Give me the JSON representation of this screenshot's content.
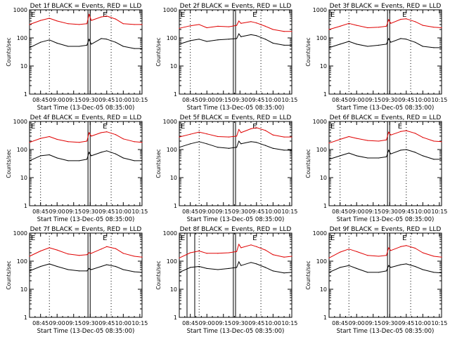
{
  "figure": {
    "x_axis_title": "Start Time (13-Dec-05 08:35:00)",
    "y_axis_title": "Counts/sec",
    "x_tick_labels": [
      "08:45",
      "09:00",
      "09:15",
      "09:30",
      "09:45",
      "10:00",
      "10:15"
    ],
    "y_tick_labels": [
      "1",
      "10",
      "100",
      "1000"
    ],
    "marker_labels": [
      "E",
      "E"
    ],
    "colors": {
      "events": "#000000",
      "lld": "#e00000",
      "axes": "#000000",
      "background": "#ffffff"
    }
  },
  "chart_data": [
    {
      "type": "line",
      "title": "Det 1f BLACK = Events, RED = LLD",
      "xlabel": "Start Time (13-Dec-05 08:35:00)",
      "ylabel": "Counts/sec",
      "x_unit": "time (hh:mm)",
      "xlim": [
        "08:35",
        "10:17"
      ],
      "ylim": [
        1,
        1000
      ],
      "yscale": "log",
      "vertical_markers": {
        "dotted": [
          "08:53",
          "09:49"
        ],
        "solid": [
          "09:28",
          "09:30"
        ]
      },
      "x": [
        "08:35",
        "08:45",
        "08:53",
        "09:00",
        "09:10",
        "09:20",
        "09:27",
        "09:29",
        "09:31",
        "09:40",
        "09:45",
        "09:53",
        "10:00",
        "10:10",
        "10:17"
      ],
      "series": [
        {
          "name": "BLACK = Events",
          "color": "#000000",
          "values": [
            45,
            70,
            85,
            65,
            50,
            50,
            55,
            90,
            60,
            95,
            90,
            70,
            50,
            42,
            42
          ]
        },
        {
          "name": "RED = LLD",
          "color": "#e00000",
          "values": [
            300,
            420,
            500,
            400,
            320,
            300,
            320,
            700,
            420,
            560,
            600,
            470,
            320,
            300,
            300
          ]
        }
      ]
    },
    {
      "type": "line",
      "title": "Det 2f BLACK = Events, RED = LLD",
      "xlabel": "Start Time (13-Dec-05 08:35:00)",
      "ylabel": "Counts/sec",
      "x_unit": "time (hh:mm)",
      "xlim": [
        "08:35",
        "10:17"
      ],
      "ylim": [
        1,
        1000
      ],
      "yscale": "log",
      "vertical_markers": {
        "dotted": [
          "08:45",
          "09:49"
        ],
        "solid": [
          "09:24",
          "09:26"
        ]
      },
      "x": [
        "08:35",
        "08:45",
        "08:53",
        "09:00",
        "09:10",
        "09:20",
        "09:27",
        "09:29",
        "09:31",
        "09:40",
        "09:45",
        "09:53",
        "10:00",
        "10:10",
        "10:17"
      ],
      "series": [
        {
          "name": "BLACK = Events",
          "color": "#000000",
          "values": [
            60,
            80,
            90,
            75,
            85,
            90,
            95,
            140,
            110,
            130,
            120,
            90,
            65,
            55,
            55
          ]
        },
        {
          "name": "RED = LLD",
          "color": "#e00000",
          "values": [
            220,
            270,
            300,
            230,
            260,
            250,
            280,
            400,
            330,
            380,
            340,
            260,
            200,
            170,
            170
          ]
        }
      ]
    },
    {
      "type": "line",
      "title": "Det 3f BLACK = Events, RED = LLD",
      "xlabel": "Start Time (13-Dec-05 08:35:00)",
      "ylabel": "Counts/sec",
      "x_unit": "time (hh:mm)",
      "xlim": [
        "08:35",
        "10:17"
      ],
      "ylim": [
        1,
        1000
      ],
      "yscale": "log",
      "vertical_markers": {
        "dotted": [
          "08:53",
          "09:49"
        ],
        "solid": [
          "09:28",
          "09:30"
        ]
      },
      "x": [
        "08:35",
        "08:45",
        "08:53",
        "09:00",
        "09:10",
        "09:20",
        "09:27",
        "09:29",
        "09:31",
        "09:40",
        "09:45",
        "09:53",
        "10:00",
        "10:10",
        "10:17"
      ],
      "series": [
        {
          "name": "BLACK = Events",
          "color": "#000000",
          "values": [
            45,
            60,
            75,
            60,
            50,
            55,
            60,
            95,
            70,
            95,
            90,
            70,
            50,
            45,
            45
          ]
        },
        {
          "name": "RED = LLD",
          "color": "#e00000",
          "values": [
            200,
            260,
            330,
            280,
            230,
            240,
            260,
            450,
            330,
            460,
            480,
            380,
            280,
            240,
            230
          ]
        }
      ]
    },
    {
      "type": "line",
      "title": "Det 4f BLACK = Events, RED = LLD",
      "xlabel": "Start Time (13-Dec-05 08:35:00)",
      "ylabel": "Counts/sec",
      "x_unit": "time (hh:mm)",
      "xlim": [
        "08:35",
        "10:17"
      ],
      "ylim": [
        1,
        1000
      ],
      "yscale": "log",
      "vertical_markers": {
        "dotted": [
          "08:45",
          "09:49"
        ],
        "solid": [
          "09:28",
          "09:30"
        ]
      },
      "x": [
        "08:35",
        "08:45",
        "08:53",
        "09:00",
        "09:10",
        "09:20",
        "09:27",
        "09:29",
        "09:31",
        "09:40",
        "09:45",
        "09:53",
        "10:00",
        "10:10",
        "10:17"
      ],
      "series": [
        {
          "name": "BLACK = Events",
          "color": "#000000",
          "values": [
            40,
            60,
            65,
            50,
            40,
            40,
            45,
            80,
            60,
            80,
            90,
            70,
            50,
            40,
            40
          ]
        },
        {
          "name": "RED = LLD",
          "color": "#e00000",
          "values": [
            180,
            250,
            290,
            230,
            190,
            180,
            200,
            400,
            300,
            400,
            430,
            340,
            240,
            190,
            180
          ]
        }
      ]
    },
    {
      "type": "line",
      "title": "Det 5f BLACK = Events, RED = LLD",
      "xlabel": "Start Time (13-Dec-05 08:35:00)",
      "ylabel": "Counts/sec",
      "x_unit": "time (hh:mm)",
      "xlim": [
        "08:35",
        "10:17"
      ],
      "ylim": [
        1,
        1000
      ],
      "yscale": "log",
      "vertical_markers": {
        "dotted": [
          "08:53",
          "09:49"
        ],
        "solid": [
          "09:24",
          "09:26"
        ]
      },
      "x": [
        "08:35",
        "08:45",
        "08:53",
        "09:00",
        "09:10",
        "09:20",
        "09:27",
        "09:29",
        "09:31",
        "09:40",
        "09:45",
        "09:53",
        "10:00",
        "10:10",
        "10:17"
      ],
      "series": [
        {
          "name": "BLACK = Events",
          "color": "#000000",
          "values": [
            120,
            160,
            190,
            160,
            120,
            110,
            120,
            200,
            160,
            190,
            180,
            140,
            110,
            95,
            95
          ]
        },
        {
          "name": "RED = LLD",
          "color": "#e00000",
          "values": [
            280,
            350,
            420,
            360,
            290,
            280,
            300,
            520,
            400,
            550,
            600,
            480,
            330,
            280,
            280
          ]
        }
      ]
    },
    {
      "type": "line",
      "title": "Det 6f BLACK = Events, RED = LLD",
      "xlabel": "Start Time (13-Dec-05 08:35:00)",
      "ylabel": "Counts/sec",
      "x_unit": "time (hh:mm)",
      "xlim": [
        "08:35",
        "10:17"
      ],
      "ylim": [
        1,
        1000
      ],
      "yscale": "log",
      "vertical_markers": {
        "dotted": [
          "08:45",
          "09:45"
        ],
        "solid": [
          "09:28",
          "09:30"
        ]
      },
      "x": [
        "08:35",
        "08:45",
        "08:53",
        "09:00",
        "09:10",
        "09:20",
        "09:27",
        "09:29",
        "09:31",
        "09:40",
        "09:45",
        "09:53",
        "10:00",
        "10:10",
        "10:17"
      ],
      "series": [
        {
          "name": "BLACK = Events",
          "color": "#000000",
          "values": [
            45,
            60,
            75,
            60,
            50,
            50,
            55,
            95,
            70,
            95,
            100,
            80,
            60,
            45,
            45
          ]
        },
        {
          "name": "RED = LLD",
          "color": "#e00000",
          "values": [
            170,
            230,
            290,
            250,
            210,
            200,
            220,
            420,
            330,
            440,
            470,
            380,
            270,
            200,
            190
          ]
        }
      ]
    },
    {
      "type": "line",
      "title": "Det 7f BLACK = Events, RED = LLD",
      "xlabel": "Start Time (13-Dec-05 08:35:00)",
      "ylabel": "Counts/sec",
      "x_unit": "time (hh:mm)",
      "xlim": [
        "08:35",
        "10:17"
      ],
      "ylim": [
        1,
        1000
      ],
      "yscale": "log",
      "vertical_markers": {
        "dotted": [
          "08:53",
          "09:49"
        ],
        "solid": [
          "09:28",
          "09:30"
        ]
      },
      "x": [
        "08:35",
        "08:45",
        "08:53",
        "09:00",
        "09:10",
        "09:20",
        "09:27",
        "09:29",
        "09:31",
        "09:40",
        "09:45",
        "09:53",
        "10:00",
        "10:10",
        "10:17"
      ],
      "series": [
        {
          "name": "BLACK = Events",
          "color": "#000000",
          "values": [
            45,
            65,
            80,
            65,
            50,
            45,
            45,
            55,
            50,
            65,
            75,
            65,
            50,
            42,
            40
          ]
        },
        {
          "name": "RED = LLD",
          "color": "#e00000",
          "values": [
            150,
            230,
            300,
            250,
            180,
            160,
            170,
            200,
            190,
            270,
            330,
            280,
            190,
            150,
            140
          ]
        }
      ]
    },
    {
      "type": "line",
      "title": "Det 8f BLACK = Events, RED = LLD",
      "xlabel": "Start Time (13-Dec-05 08:35:00)",
      "ylabel": "Counts/sec",
      "x_unit": "time (hh:mm)",
      "xlim": [
        "08:35",
        "10:17"
      ],
      "ylim": [
        1,
        1000
      ],
      "yscale": "log",
      "vertical_markers": {
        "dotted": [
          "08:53",
          "09:49"
        ],
        "solid": [
          "08:42",
          "08:49",
          "09:24",
          "09:26"
        ]
      },
      "x": [
        "08:35",
        "08:45",
        "08:53",
        "09:00",
        "09:10",
        "09:20",
        "09:27",
        "09:29",
        "09:31",
        "09:40",
        "09:45",
        "09:53",
        "10:00",
        "10:10",
        "10:17"
      ],
      "series": [
        {
          "name": "BLACK = Events",
          "color": "#000000",
          "values": [
            40,
            60,
            65,
            55,
            50,
            55,
            60,
            95,
            70,
            90,
            80,
            60,
            45,
            38,
            40
          ]
        },
        {
          "name": "RED = LLD",
          "color": "#e00000",
          "values": [
            130,
            200,
            230,
            190,
            190,
            200,
            220,
            400,
            300,
            380,
            330,
            250,
            170,
            140,
            150
          ]
        }
      ]
    },
    {
      "type": "line",
      "title": "Det 9f BLACK = Events, RED = LLD",
      "xlabel": "Start Time (13-Dec-05 08:35:00)",
      "ylabel": "Counts/sec",
      "x_unit": "time (hh:mm)",
      "xlim": [
        "08:35",
        "10:17"
      ],
      "ylim": [
        1,
        1000
      ],
      "yscale": "log",
      "vertical_markers": {
        "dotted": [
          "08:53",
          "09:49"
        ],
        "solid": [
          "09:28",
          "09:30"
        ]
      },
      "x": [
        "08:35",
        "08:45",
        "08:53",
        "09:00",
        "09:10",
        "09:20",
        "09:27",
        "09:29",
        "09:31",
        "09:40",
        "09:45",
        "09:53",
        "10:00",
        "10:10",
        "10:17"
      ],
      "series": [
        {
          "name": "BLACK = Events",
          "color": "#000000",
          "values": [
            40,
            60,
            70,
            55,
            40,
            40,
            45,
            70,
            60,
            75,
            80,
            65,
            50,
            40,
            38
          ]
        },
        {
          "name": "RED = LLD",
          "color": "#e00000",
          "values": [
            130,
            210,
            270,
            220,
            160,
            150,
            160,
            300,
            240,
            330,
            360,
            290,
            200,
            150,
            140
          ]
        }
      ]
    }
  ]
}
